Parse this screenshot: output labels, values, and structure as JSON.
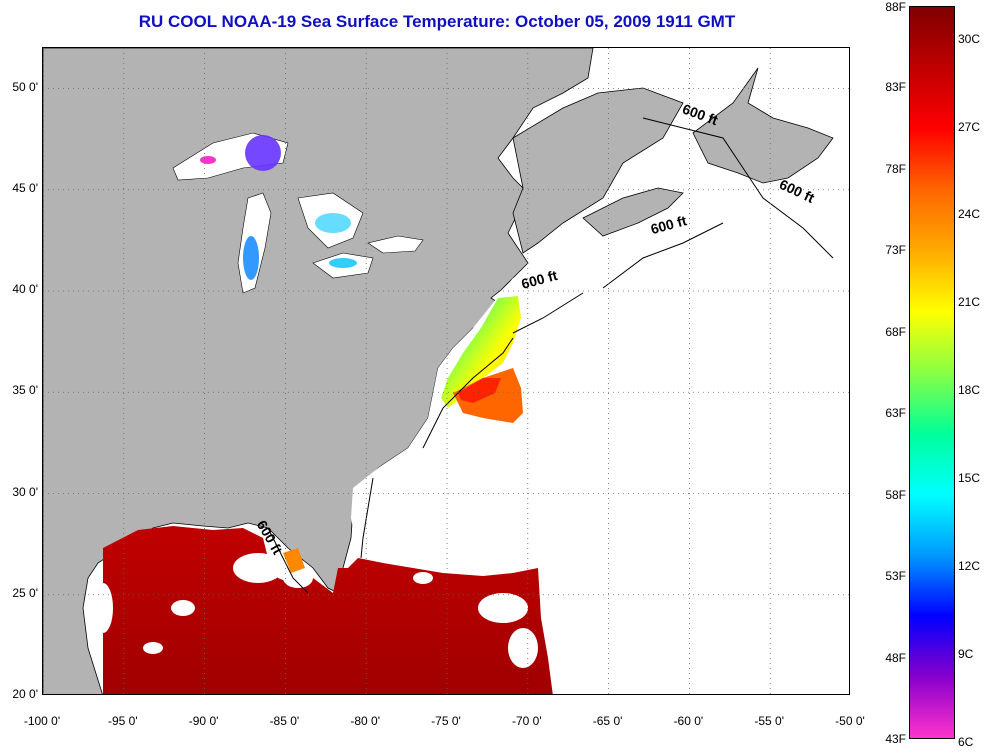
{
  "title": "RU COOL  NOAA-19  Sea Surface Temperature:  October 05, 2009 1911 GMT",
  "map": {
    "lon_range": [
      -100,
      -50
    ],
    "lat_range": [
      20,
      52
    ],
    "grid": "dotted",
    "land_color": "#b3b3b3",
    "cloud_color": "#ffffff",
    "lon_ticks": [
      -100,
      -95,
      -90,
      -85,
      -80,
      -75,
      -70,
      -65,
      -60,
      -55,
      -50
    ],
    "lat_ticks": [
      20,
      25,
      30,
      35,
      40,
      45,
      50
    ],
    "lon_labels": [
      "-100 0'",
      "-95 0'",
      "-90 0'",
      "-85 0'",
      "-80 0'",
      "-75 0'",
      "-70 0'",
      "-65 0'",
      "-60 0'",
      "-55 0'",
      "-50 0'"
    ],
    "lat_labels": [
      "20 0'",
      "25 0'",
      "30 0'",
      "35 0'",
      "40 0'",
      "45 0'",
      "50 0'"
    ],
    "isobath_label": "600 ft",
    "isobath_labels": [
      {
        "text": "600 ft",
        "lon": -60.5,
        "lat": 48.8
      },
      {
        "text": "600 ft",
        "lon": -54.5,
        "lat": 45.1
      },
      {
        "text": "600 ft",
        "lon": -62.3,
        "lat": 42.8
      },
      {
        "text": "600 ft",
        "lon": -70.3,
        "lat": 40.1
      },
      {
        "text": "600 ft",
        "lon": -86.8,
        "lat": 28.5
      }
    ]
  },
  "colorbar": {
    "fahrenheit_labels": [
      "88F",
      "83F",
      "78F",
      "73F",
      "68F",
      "63F",
      "58F",
      "53F",
      "48F",
      "43F"
    ],
    "celsius_labels": [
      "30C",
      "27C",
      "24C",
      "21C",
      "18C",
      "15C",
      "12C",
      "9C",
      "6C"
    ],
    "f_range": [
      43,
      88
    ],
    "c_values": [
      30,
      27,
      24,
      21,
      18,
      15,
      12,
      9,
      6
    ],
    "f_values": [
      88,
      83,
      78,
      73,
      68,
      63,
      58,
      53,
      48,
      43
    ],
    "colors_top_to_bottom": [
      "#800000",
      "#c00000",
      "#ff0000",
      "#ff6600",
      "#ffaa00",
      "#ffff00",
      "#88ff44",
      "#00ff99",
      "#00ffff",
      "#0099ff",
      "#0000ff",
      "#8800cc",
      "#ff33cc"
    ]
  }
}
